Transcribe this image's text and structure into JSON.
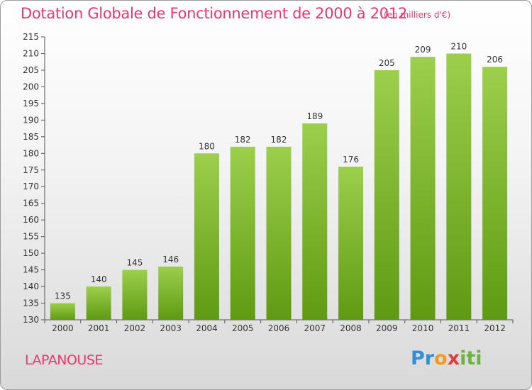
{
  "header": {
    "title": "Dotation Globale de Fonctionnement de 2000 à 2012",
    "subtitle": "(en milliers d'€)"
  },
  "footer": {
    "place": "LAPANOUSE",
    "logo_text": "Proxiti"
  },
  "colors": {
    "title": "#e8366e",
    "bar_top": "#9ccf4c",
    "bar_bottom": "#5f9a12",
    "grid": "#555555"
  },
  "chart_data": {
    "type": "bar",
    "categories": [
      "2000",
      "2001",
      "2002",
      "2003",
      "2004",
      "2005",
      "2006",
      "2007",
      "2008",
      "2009",
      "2010",
      "2011",
      "2012"
    ],
    "values": [
      135,
      140,
      145,
      146,
      180,
      182,
      182,
      189,
      176,
      205,
      209,
      210,
      206
    ],
    "ylim": [
      130,
      215
    ],
    "yticks": [
      130,
      135,
      140,
      145,
      150,
      155,
      160,
      165,
      170,
      175,
      180,
      185,
      190,
      195,
      200,
      205,
      210,
      215
    ],
    "grid": false,
    "data_labels": true
  }
}
